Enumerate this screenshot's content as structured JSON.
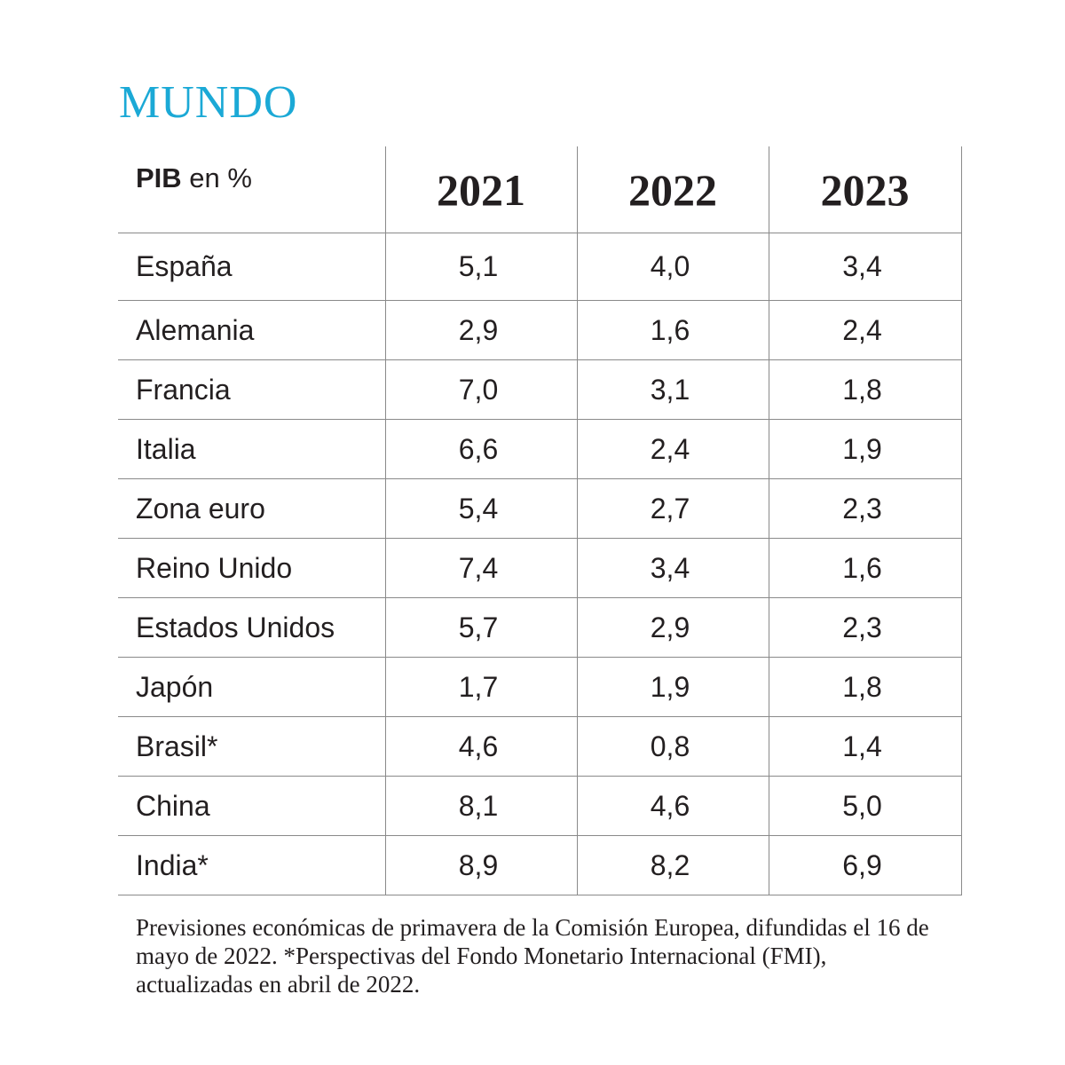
{
  "title": "MUNDO",
  "header": {
    "label_bold": "PIB",
    "label_rest": " en %",
    "years": [
      "2021",
      "2022",
      "2023"
    ]
  },
  "rows": [
    {
      "country": "España",
      "values": [
        "5,1",
        "4,0",
        "3,4"
      ]
    },
    {
      "country": "Alemania",
      "values": [
        "2,9",
        "1,6",
        "2,4"
      ]
    },
    {
      "country": "Francia",
      "values": [
        "7,0",
        "3,1",
        "1,8"
      ]
    },
    {
      "country": "Italia",
      "values": [
        "6,6",
        "2,4",
        "1,9"
      ]
    },
    {
      "country": "Zona euro",
      "values": [
        "5,4",
        "2,7",
        "2,3"
      ]
    },
    {
      "country": "Reino Unido",
      "values": [
        "7,4",
        "3,4",
        "1,6"
      ]
    },
    {
      "country": "Estados Unidos",
      "values": [
        "5,7",
        "2,9",
        "2,3"
      ]
    },
    {
      "country": "Japón",
      "values": [
        "1,7",
        "1,9",
        "1,8"
      ]
    },
    {
      "country": "Brasil*",
      "values": [
        "4,6",
        "0,8",
        "1,4"
      ]
    },
    {
      "country": "China",
      "values": [
        "8,1",
        "4,6",
        "5,0"
      ]
    },
    {
      "country": "India*",
      "values": [
        "8,9",
        "8,2",
        "6,9"
      ]
    }
  ],
  "note": "Previsiones económicas de primavera de la Comisión Europea, difundidas el 16 de mayo de 2022. *Perspectivas del Fondo Monetario Internacional (FMI), actualizadas en abril de 2022.",
  "colors": {
    "title": "#1ba9d6",
    "text": "#231f20",
    "rules": "#8a8a8a"
  }
}
